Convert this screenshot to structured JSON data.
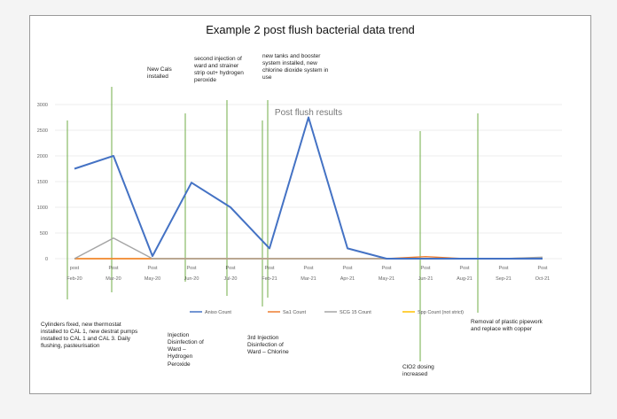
{
  "page": {
    "title": "Example 2 post flush bacterial data trend"
  },
  "annotations": {
    "new_cals": "New Cals installed",
    "second_injection": "second injection of ward and strainer strip out+ hydrogen peroxide",
    "new_tanks": "new tanks and booster system installed, new chlorine dioxide system in use",
    "cylinders_fixed": "Cylinders fixed, new thermostat installed to CAL 1, new destrat pumps installed to CAL 1 and CAL 3. Daily flushing, pasteurisation",
    "injection_h2o2": "Injection Disinfection of Ward – Hydrogen Peroxide",
    "third_injection": "3rd Injection Disinfection of Ward – Chlorine",
    "cl02_dosing": "ClO2 dosing increased",
    "removal_plastic": "Removal of plastic pipework and replace with copper"
  },
  "chart_data": {
    "type": "line",
    "title": "Post flush results",
    "x_labels_top": [
      "post",
      "Post",
      "Post",
      "Post",
      "Post",
      "Post",
      "Post",
      "Post",
      "Post",
      "Post",
      "Post",
      "Post",
      "Post"
    ],
    "categories": [
      "Feb-20",
      "Mar-20",
      "May-20",
      "Jun-20",
      "Jul-20",
      "Feb-21",
      "Mar-21",
      "Apr-21",
      "May-21",
      "Jun-21",
      "Aug-21",
      "Sep-21",
      "Oct-21"
    ],
    "y_ticks": [
      "0",
      "500",
      "1000",
      "1500",
      "2000",
      "2500",
      "3000"
    ],
    "ylim": [
      0,
      3000
    ],
    "grid": true,
    "legend_position": "bottom",
    "series": [
      {
        "name": "Aniso Count",
        "color": "#4472c4",
        "values": [
          1750,
          2000,
          50,
          1480,
          1000,
          200,
          2750,
          200,
          0,
          0,
          0,
          0,
          0
        ]
      },
      {
        "name": "Sa1 Count",
        "color": "#ed7d31",
        "values": [
          0,
          0,
          0,
          0,
          0,
          0,
          0,
          0,
          0,
          40,
          0,
          0,
          20
        ]
      },
      {
        "name": "SCG 15 Count",
        "color": "#a5a5a5",
        "values": [
          0,
          400,
          0,
          0,
          0,
          0,
          0,
          0,
          0,
          0,
          0,
          0,
          30
        ]
      },
      {
        "name": "Spp Count (not strict)",
        "color": "#ffc000",
        "values": [
          0,
          0,
          0,
          0,
          0,
          0,
          0,
          0,
          0,
          0,
          0,
          0,
          0
        ]
      }
    ],
    "event_lines_color": "#70ad47"
  }
}
